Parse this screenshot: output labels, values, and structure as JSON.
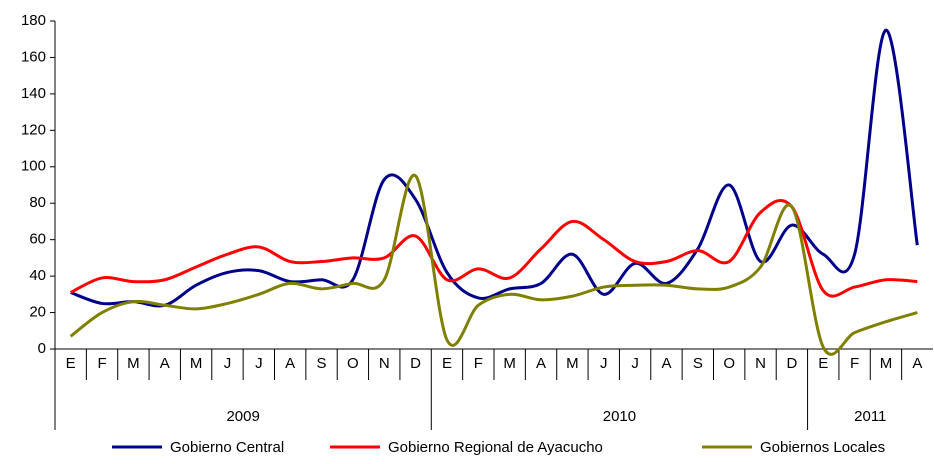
{
  "chart_data": {
    "type": "line",
    "category_groups": [
      {
        "label": "2009",
        "categories": [
          "E",
          "F",
          "M",
          "A",
          "M",
          "J",
          "J",
          "A",
          "S",
          "O",
          "N",
          "D"
        ]
      },
      {
        "label": "2010",
        "categories": [
          "E",
          "F",
          "M",
          "A",
          "M",
          "J",
          "J",
          "A",
          "S",
          "O",
          "N",
          "D"
        ]
      },
      {
        "label": "2011",
        "categories": [
          "E",
          "F",
          "M",
          "A"
        ]
      }
    ],
    "series": [
      {
        "name": "Gobierno Central",
        "color": "#00008b",
        "values": [
          31,
          25,
          26,
          24,
          35,
          42,
          43,
          37,
          38,
          38,
          93,
          82,
          42,
          28,
          33,
          36,
          52,
          30,
          47,
          36,
          55,
          90,
          48,
          68,
          52,
          52,
          175,
          57
        ]
      },
      {
        "name": "Gobierno Regional de Ayacucho",
        "color": "#ff0000",
        "values": [
          31,
          39,
          37,
          38,
          45,
          52,
          56,
          48,
          48,
          50,
          50,
          62,
          38,
          44,
          39,
          55,
          70,
          60,
          48,
          48,
          54,
          48,
          75,
          78,
          32,
          34,
          38,
          37
        ]
      },
      {
        "name": "Gobiernos Locales",
        "color": "#808000",
        "values": [
          7,
          20,
          26,
          24,
          22,
          25,
          30,
          36,
          33,
          36,
          38,
          95,
          5,
          24,
          30,
          27,
          29,
          34,
          35,
          35,
          33,
          34,
          45,
          78,
          1,
          9,
          15,
          20
        ]
      }
    ],
    "ylim": [
      0,
      180
    ],
    "yticks": [
      0,
      20,
      40,
      60,
      80,
      100,
      120,
      140,
      160,
      180
    ],
    "grid": false,
    "legend": "bottom"
  }
}
